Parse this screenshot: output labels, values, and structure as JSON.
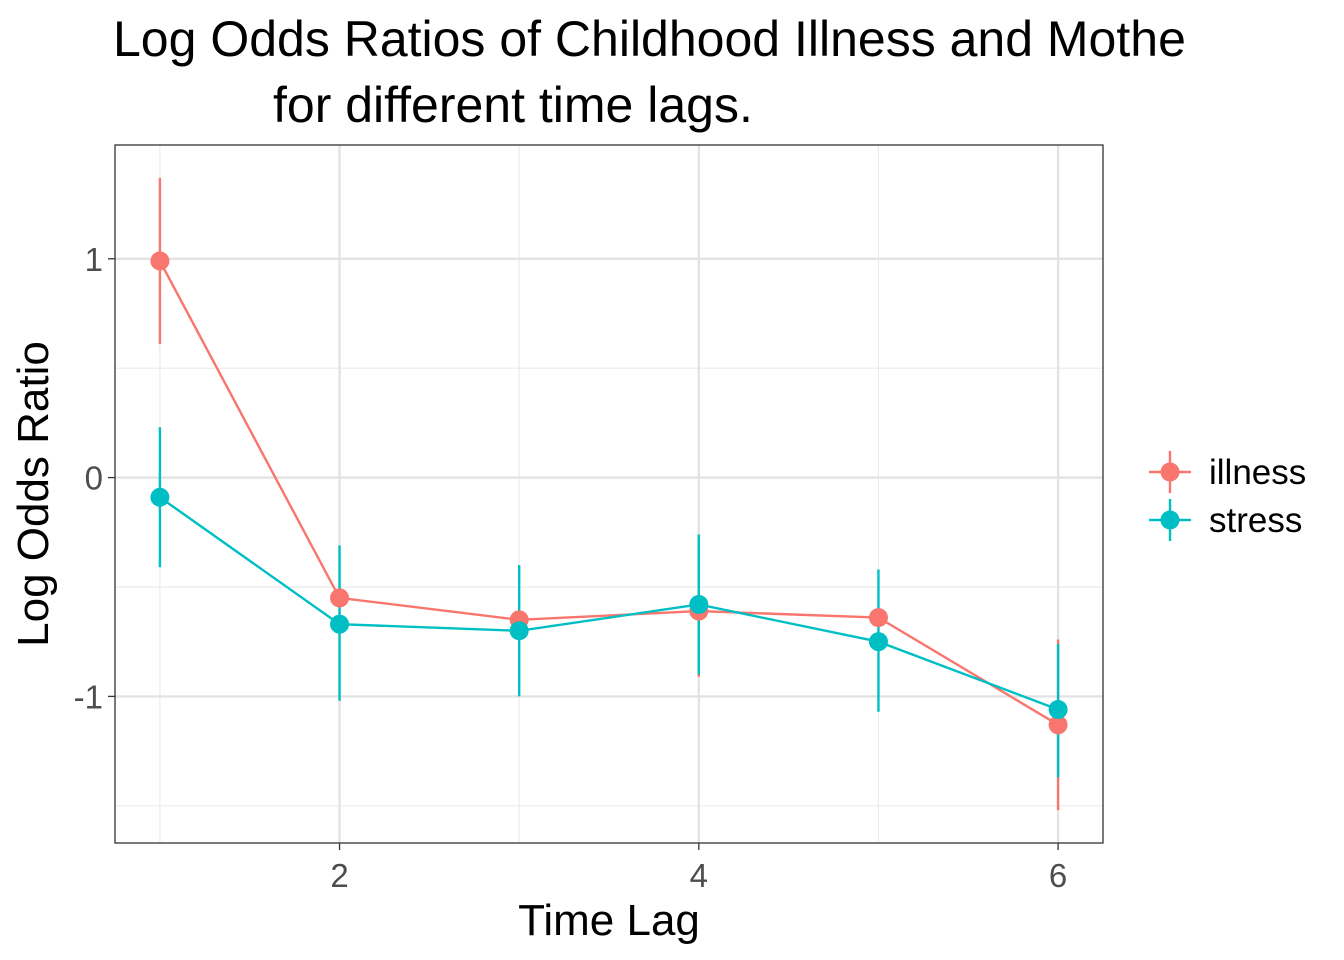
{
  "chart_data": {
    "type": "line",
    "title_lines": [
      "Log Odds Ratios of Childhood Illness and Mothe",
      "for different time lags."
    ],
    "xlabel": "Time Lag",
    "ylabel": "Log Odds Ratio",
    "xlim": [
      0.75,
      6.25
    ],
    "ylim": [
      -1.67,
      1.52
    ],
    "x_ticks": [
      2,
      4,
      6
    ],
    "x_tick_labels": [
      "2",
      "4",
      "6"
    ],
    "y_ticks": [
      1,
      0,
      -1
    ],
    "y_tick_labels": [
      "1",
      "0",
      "-1"
    ],
    "grid": true,
    "legend_position": "right",
    "series": [
      {
        "name": "illness",
        "color": "#F8766D",
        "x": [
          1,
          2,
          3,
          4,
          5,
          6
        ],
        "y": [
          0.99,
          -0.55,
          -0.65,
          -0.61,
          -0.64,
          -1.13
        ],
        "lower": [
          0.61,
          -0.29,
          -0.39,
          -0.91,
          -0.27,
          -1.52
        ],
        "upper": [
          1.37,
          -0.29,
          -0.39,
          -0.27,
          -0.27,
          -0.74
        ]
      },
      {
        "name": "stress",
        "color": "#00BFC4",
        "x": [
          1,
          2,
          3,
          4,
          5,
          6
        ],
        "y": [
          -0.09,
          -0.67,
          -0.7,
          -0.58,
          -0.75,
          -1.06
        ],
        "lower": [
          -0.41,
          -1.02,
          -1.0,
          -0.9,
          -1.07,
          -1.37
        ],
        "upper": [
          0.23,
          -0.31,
          -0.4,
          -0.26,
          -0.42,
          -0.76
        ]
      }
    ]
  }
}
